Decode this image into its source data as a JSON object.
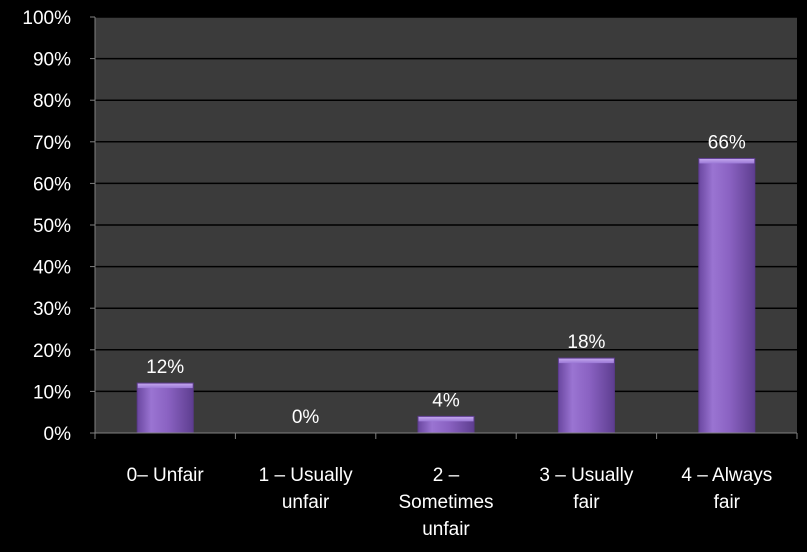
{
  "colors": {
    "background": "#000000",
    "plot_area": "#3b3b3b",
    "bar_fill": "#8a62c2",
    "bar_highlight": "#b79ae4",
    "bar_shadow": "#5b3a8c",
    "gridline": "#000000",
    "text": "#ffffff"
  },
  "chart_data": {
    "type": "bar",
    "categories": [
      [
        "0– Unfair"
      ],
      [
        "1 – Usually",
        "unfair"
      ],
      [
        "2 –",
        "Sometimes",
        "unfair"
      ],
      [
        "3 – Usually",
        "fair"
      ],
      [
        "4 – Always",
        "fair"
      ]
    ],
    "values": [
      12,
      0,
      4,
      18,
      66
    ],
    "data_labels": [
      "12%",
      "0%",
      "4%",
      "18%",
      "66%"
    ],
    "y_ticks": [
      "0%",
      "10%",
      "20%",
      "30%",
      "40%",
      "50%",
      "60%",
      "70%",
      "80%",
      "90%",
      "100%"
    ],
    "ylim": [
      0,
      100
    ],
    "grid": true,
    "legend": "none"
  }
}
